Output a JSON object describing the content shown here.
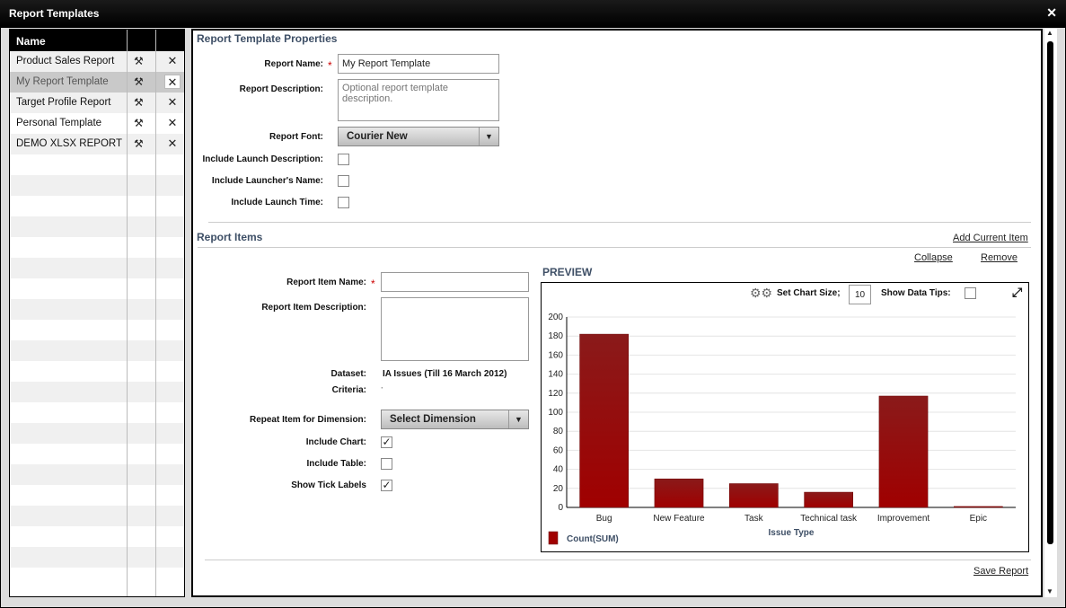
{
  "window": {
    "title": "Report Templates"
  },
  "list": {
    "header": "Name",
    "items": [
      {
        "name": "Product Sales Report"
      },
      {
        "name": "My Report Template",
        "selected": true
      },
      {
        "name": "Target Profile Report"
      },
      {
        "name": "Personal Template"
      },
      {
        "name": "DEMO XLSX REPORT"
      }
    ]
  },
  "properties": {
    "title": "Report Template Properties",
    "report_name_label": "Report Name:",
    "report_name_value": "My Report Template",
    "description_label": "Report Description:",
    "description_placeholder": "Optional report template description.",
    "font_label": "Report Font:",
    "font_value": "Courier New",
    "launch_desc_label": "Include Launch Description:",
    "launcher_name_label": "Include Launcher's Name:",
    "launch_time_label": "Include Launch Time:"
  },
  "items_section": {
    "title": "Report Items",
    "add_current_item": "Add Current Item",
    "collapse": "Collapse",
    "remove": "Remove",
    "item_name_label": "Report Item Name:",
    "item_desc_label": "Report Item Description:",
    "dataset_label": "Dataset:",
    "dataset_value": "IA Issues (Till 16 March 2012)",
    "criteria_label": "Criteria:",
    "criteria_value": "·",
    "repeat_label": "Repeat Item for Dimension:",
    "repeat_value": "Select Dimension",
    "include_chart_label": "Include Chart:",
    "include_chart_checked": true,
    "include_table_label": "Include Table:",
    "include_table_checked": false,
    "tick_labels_label": "Show Tick Labels",
    "tick_labels_checked": true
  },
  "preview": {
    "title": "PREVIEW",
    "chart_size_label": "Set Chart Size;",
    "chart_size_value": "10",
    "data_tips_label": "Show Data Tips:"
  },
  "chart_data": {
    "type": "bar",
    "categories": [
      "Bug",
      "New Feature",
      "Task",
      "Technical task",
      "Improvement",
      "Epic"
    ],
    "series": [
      {
        "name": "Count(SUM)",
        "values": [
          182,
          30,
          25,
          16,
          117,
          1
        ],
        "color": "#a00000"
      }
    ],
    "xlabel": "Issue Type",
    "ylabel": "",
    "ylim": [
      0,
      200
    ],
    "yticks": [
      0,
      20,
      40,
      60,
      80,
      100,
      120,
      140,
      160,
      180,
      200
    ],
    "grid": true,
    "legend": "bottom-left"
  },
  "footer": {
    "save_report": "Save Report"
  }
}
